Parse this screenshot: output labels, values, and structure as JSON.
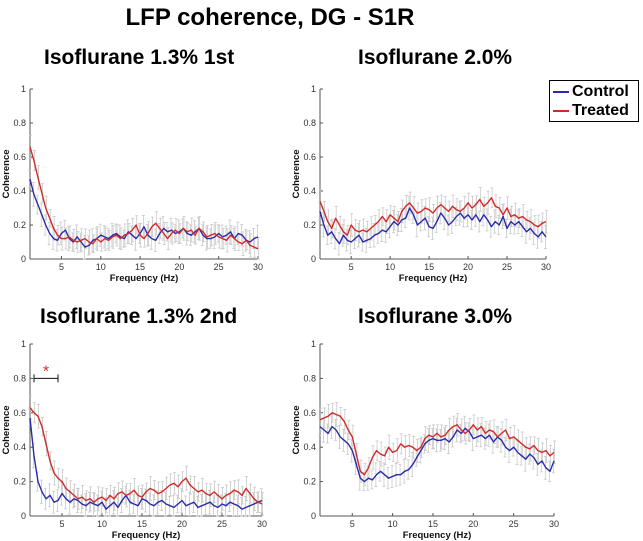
{
  "figure": {
    "title": "LFP coherence, DG - S1R"
  },
  "legend": {
    "entries": [
      {
        "name": "Control",
        "color": "#2b2ba8"
      },
      {
        "name": "Treated",
        "color": "#d02a2a"
      }
    ]
  },
  "chart_data": [
    {
      "type": "line",
      "title": "Isoflurane 1.3% 1st",
      "xlabel": "Frequency (Hz)",
      "ylabel": "Coherence",
      "xlim": [
        1,
        30
      ],
      "ylim": [
        0,
        1
      ],
      "xticks": [
        5,
        10,
        15,
        20,
        25,
        30
      ],
      "yticks": [
        0,
        0.2,
        0.4,
        0.6,
        0.8,
        1
      ],
      "ytick_labels": [
        "0",
        "0.2",
        "0.4",
        "0.6",
        "0.8",
        "1"
      ],
      "x": [
        1,
        1.5,
        2,
        2.5,
        3,
        3.5,
        4,
        4.5,
        5,
        5.5,
        6,
        6.5,
        7,
        7.5,
        8,
        8.5,
        9,
        9.5,
        10,
        10.5,
        11,
        11.5,
        12,
        12.5,
        13,
        13.5,
        14,
        14.5,
        15,
        15.5,
        16,
        16.5,
        17,
        17.5,
        18,
        18.5,
        19,
        19.5,
        20,
        20.5,
        21,
        21.5,
        22,
        22.5,
        23,
        23.5,
        24,
        24.5,
        25,
        25.5,
        26,
        26.5,
        27,
        27.5,
        28,
        28.5,
        29,
        29.5,
        30
      ],
      "series": [
        {
          "name": "Control",
          "color": "#2b2ba8",
          "values": [
            0.47,
            0.38,
            0.32,
            0.26,
            0.2,
            0.15,
            0.12,
            0.11,
            0.15,
            0.17,
            0.12,
            0.1,
            0.13,
            0.1,
            0.07,
            0.08,
            0.11,
            0.12,
            0.14,
            0.13,
            0.12,
            0.14,
            0.15,
            0.13,
            0.12,
            0.16,
            0.14,
            0.12,
            0.15,
            0.19,
            0.14,
            0.12,
            0.11,
            0.15,
            0.18,
            0.16,
            0.17,
            0.15,
            0.16,
            0.18,
            0.15,
            0.14,
            0.16,
            0.18,
            0.14,
            0.12,
            0.12,
            0.13,
            0.15,
            0.13,
            0.14,
            0.16,
            0.12,
            0.15,
            0.14,
            0.11,
            0.1,
            0.12,
            0.13
          ]
        },
        {
          "name": "Treated",
          "color": "#d02a2a",
          "values": [
            0.66,
            0.58,
            0.48,
            0.39,
            0.3,
            0.24,
            0.18,
            0.14,
            0.12,
            0.12,
            0.13,
            0.11,
            0.1,
            0.11,
            0.12,
            0.1,
            0.09,
            0.12,
            0.1,
            0.12,
            0.11,
            0.13,
            0.14,
            0.12,
            0.14,
            0.15,
            0.17,
            0.2,
            0.14,
            0.12,
            0.15,
            0.19,
            0.21,
            0.18,
            0.15,
            0.12,
            0.15,
            0.17,
            0.15,
            0.18,
            0.16,
            0.17,
            0.14,
            0.18,
            0.16,
            0.13,
            0.14,
            0.15,
            0.13,
            0.12,
            0.11,
            0.14,
            0.12,
            0.1,
            0.09,
            0.11,
            0.08,
            0.07,
            0.06
          ]
        }
      ],
      "significance": null
    },
    {
      "type": "line",
      "title": "Isoflurane 2.0%",
      "xlabel": "Frequency (Hz)",
      "ylabel": "Coherence",
      "xlim": [
        1,
        30
      ],
      "ylim": [
        0,
        1
      ],
      "xticks": [
        5,
        10,
        15,
        20,
        25,
        30
      ],
      "yticks": [
        0,
        0.2,
        0.4,
        0.6,
        0.8,
        1
      ],
      "ytick_labels": [
        "0",
        "0.2",
        "0.4",
        "0.6",
        "0.8",
        "1"
      ],
      "x": [
        1,
        1.5,
        2,
        2.5,
        3,
        3.5,
        4,
        4.5,
        5,
        5.5,
        6,
        6.5,
        7,
        7.5,
        8,
        8.5,
        9,
        9.5,
        10,
        10.5,
        11,
        11.5,
        12,
        12.5,
        13,
        13.5,
        14,
        14.5,
        15,
        15.5,
        16,
        16.5,
        17,
        17.5,
        18,
        18.5,
        19,
        19.5,
        20,
        20.5,
        21,
        21.5,
        22,
        22.5,
        23,
        23.5,
        24,
        24.5,
        25,
        25.5,
        26,
        26.5,
        27,
        27.5,
        28,
        28.5,
        29,
        29.5,
        30
      ],
      "series": [
        {
          "name": "Control",
          "color": "#2b2ba8",
          "values": [
            0.28,
            0.2,
            0.14,
            0.16,
            0.12,
            0.09,
            0.14,
            0.11,
            0.1,
            0.12,
            0.14,
            0.1,
            0.11,
            0.12,
            0.14,
            0.15,
            0.17,
            0.16,
            0.19,
            0.22,
            0.2,
            0.23,
            0.24,
            0.3,
            0.26,
            0.2,
            0.22,
            0.24,
            0.19,
            0.18,
            0.22,
            0.27,
            0.24,
            0.2,
            0.22,
            0.25,
            0.27,
            0.24,
            0.26,
            0.23,
            0.26,
            0.22,
            0.26,
            0.23,
            0.19,
            0.22,
            0.2,
            0.25,
            0.18,
            0.22,
            0.2,
            0.22,
            0.19,
            0.16,
            0.18,
            0.15,
            0.13,
            0.16,
            0.13
          ]
        },
        {
          "name": "Treated",
          "color": "#d02a2a",
          "values": [
            0.34,
            0.28,
            0.22,
            0.18,
            0.24,
            0.2,
            0.16,
            0.14,
            0.2,
            0.17,
            0.16,
            0.17,
            0.16,
            0.18,
            0.2,
            0.22,
            0.25,
            0.22,
            0.26,
            0.24,
            0.22,
            0.28,
            0.31,
            0.33,
            0.3,
            0.27,
            0.28,
            0.3,
            0.29,
            0.27,
            0.3,
            0.32,
            0.3,
            0.28,
            0.31,
            0.29,
            0.28,
            0.3,
            0.33,
            0.3,
            0.32,
            0.35,
            0.31,
            0.33,
            0.36,
            0.31,
            0.3,
            0.26,
            0.3,
            0.25,
            0.26,
            0.24,
            0.25,
            0.23,
            0.22,
            0.2,
            0.19,
            0.21,
            0.22
          ]
        }
      ],
      "significance": null
    },
    {
      "type": "line",
      "title": "Isoflurane 1.3% 2nd",
      "xlabel": "Frequency (Hz)",
      "ylabel": "Coherence",
      "xlim": [
        1,
        30
      ],
      "ylim": [
        0,
        1
      ],
      "xticks": [
        5,
        10,
        15,
        20,
        25,
        30
      ],
      "yticks": [
        0,
        0.2,
        0.4,
        0.6,
        0.8,
        1
      ],
      "ytick_labels": [
        "0",
        "0.2",
        "0.4",
        "0.6",
        "0.8",
        "1"
      ],
      "x": [
        1,
        1.5,
        2,
        2.5,
        3,
        3.5,
        4,
        4.5,
        5,
        5.5,
        6,
        6.5,
        7,
        7.5,
        8,
        8.5,
        9,
        9.5,
        10,
        10.5,
        11,
        11.5,
        12,
        12.5,
        13,
        13.5,
        14,
        14.5,
        15,
        15.5,
        16,
        16.5,
        17,
        17.5,
        18,
        18.5,
        19,
        19.5,
        20,
        20.5,
        21,
        21.5,
        22,
        22.5,
        23,
        23.5,
        24,
        24.5,
        25,
        25.5,
        26,
        26.5,
        27,
        27.5,
        28,
        28.5,
        29,
        29.5,
        30
      ],
      "series": [
        {
          "name": "Control",
          "color": "#2b2ba8",
          "values": [
            0.57,
            0.35,
            0.2,
            0.14,
            0.1,
            0.12,
            0.08,
            0.09,
            0.13,
            0.1,
            0.08,
            0.1,
            0.09,
            0.07,
            0.06,
            0.08,
            0.07,
            0.06,
            0.08,
            0.04,
            0.06,
            0.08,
            0.05,
            0.09,
            0.12,
            0.08,
            0.07,
            0.06,
            0.1,
            0.09,
            0.07,
            0.06,
            0.08,
            0.09,
            0.07,
            0.06,
            0.05,
            0.07,
            0.09,
            0.06,
            0.07,
            0.08,
            0.05,
            0.06,
            0.07,
            0.08,
            0.06,
            0.05,
            0.07,
            0.06,
            0.08,
            0.07,
            0.06,
            0.04,
            0.05,
            0.06,
            0.07,
            0.08,
            0.09
          ]
        },
        {
          "name": "Treated",
          "color": "#d02a2a",
          "values": [
            0.63,
            0.6,
            0.58,
            0.52,
            0.42,
            0.32,
            0.25,
            0.22,
            0.2,
            0.16,
            0.14,
            0.12,
            0.1,
            0.11,
            0.09,
            0.1,
            0.08,
            0.1,
            0.11,
            0.09,
            0.12,
            0.1,
            0.13,
            0.14,
            0.12,
            0.13,
            0.15,
            0.12,
            0.11,
            0.14,
            0.16,
            0.15,
            0.13,
            0.14,
            0.16,
            0.18,
            0.19,
            0.17,
            0.2,
            0.22,
            0.18,
            0.16,
            0.14,
            0.15,
            0.13,
            0.12,
            0.14,
            0.12,
            0.1,
            0.12,
            0.13,
            0.15,
            0.14,
            0.12,
            0.16,
            0.13,
            0.1,
            0.08,
            0.07
          ]
        }
      ],
      "significance": {
        "x_start": 1.5,
        "x_end": 4.5,
        "y": 0.8,
        "marker": "*"
      }
    },
    {
      "type": "line",
      "title": "Isoflurane 3.0%",
      "xlabel": "Frequency (Hz)",
      "ylabel": "Coherence",
      "xlim": [
        1,
        30
      ],
      "ylim": [
        0,
        1
      ],
      "xticks": [
        5,
        10,
        15,
        20,
        25,
        30
      ],
      "yticks": [
        0,
        0.2,
        0.4,
        0.6,
        0.8,
        1
      ],
      "ytick_labels": [
        "0",
        "0.2",
        "0.4",
        "0.6",
        "0.8",
        "1"
      ],
      "x": [
        1,
        1.5,
        2,
        2.5,
        3,
        3.5,
        4,
        4.5,
        5,
        5.5,
        6,
        6.5,
        7,
        7.5,
        8,
        8.5,
        9,
        9.5,
        10,
        10.5,
        11,
        11.5,
        12,
        12.5,
        13,
        13.5,
        14,
        14.5,
        15,
        15.5,
        16,
        16.5,
        17,
        17.5,
        18,
        18.5,
        19,
        19.5,
        20,
        20.5,
        21,
        21.5,
        22,
        22.5,
        23,
        23.5,
        24,
        24.5,
        25,
        25.5,
        26,
        26.5,
        27,
        27.5,
        28,
        28.5,
        29,
        29.5,
        30
      ],
      "series": [
        {
          "name": "Control",
          "color": "#2b2ba8",
          "values": [
            0.52,
            0.5,
            0.48,
            0.52,
            0.5,
            0.46,
            0.44,
            0.42,
            0.38,
            0.3,
            0.22,
            0.2,
            0.22,
            0.21,
            0.24,
            0.26,
            0.24,
            0.22,
            0.23,
            0.24,
            0.24,
            0.26,
            0.27,
            0.3,
            0.34,
            0.38,
            0.42,
            0.44,
            0.45,
            0.44,
            0.44,
            0.45,
            0.43,
            0.46,
            0.5,
            0.48,
            0.51,
            0.49,
            0.45,
            0.46,
            0.47,
            0.45,
            0.47,
            0.43,
            0.46,
            0.44,
            0.4,
            0.38,
            0.4,
            0.37,
            0.35,
            0.33,
            0.36,
            0.34,
            0.3,
            0.32,
            0.28,
            0.26,
            0.32
          ]
        },
        {
          "name": "Treated",
          "color": "#d02a2a",
          "values": [
            0.56,
            0.57,
            0.58,
            0.6,
            0.59,
            0.58,
            0.55,
            0.5,
            0.46,
            0.36,
            0.26,
            0.24,
            0.28,
            0.34,
            0.38,
            0.36,
            0.35,
            0.4,
            0.37,
            0.38,
            0.42,
            0.4,
            0.41,
            0.4,
            0.38,
            0.4,
            0.45,
            0.47,
            0.46,
            0.48,
            0.46,
            0.47,
            0.5,
            0.52,
            0.53,
            0.5,
            0.48,
            0.5,
            0.53,
            0.5,
            0.52,
            0.48,
            0.5,
            0.49,
            0.46,
            0.48,
            0.5,
            0.45,
            0.46,
            0.44,
            0.42,
            0.4,
            0.39,
            0.41,
            0.38,
            0.37,
            0.38,
            0.35,
            0.37
          ]
        }
      ],
      "significance": null
    }
  ]
}
